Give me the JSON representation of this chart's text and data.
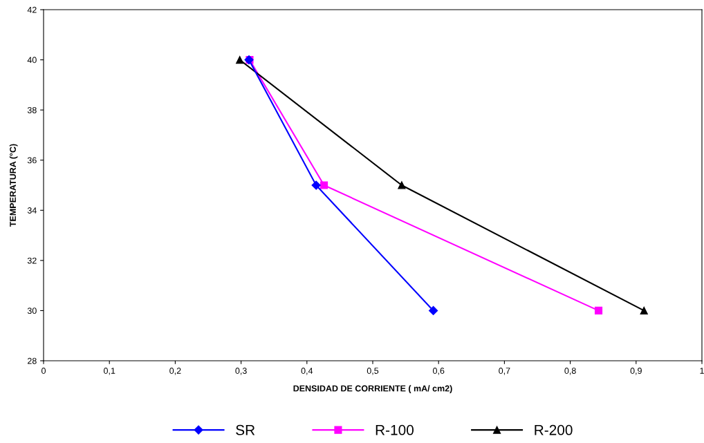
{
  "chart_data": {
    "type": "line",
    "xlabel": "DENSIDAD DE CORRIENTE ( mA/ cm2)",
    "ylabel": "TEMPERATURA (°C)",
    "xlim": [
      0,
      1
    ],
    "xticks": [
      0,
      {
        "value": 0.1,
        "label": "0,1"
      },
      {
        "value": 0.2,
        "label": "0,2"
      },
      {
        "value": 0.3,
        "label": "0,3"
      },
      {
        "value": 0.4,
        "label": "0,4"
      },
      {
        "value": 0.5,
        "label": "0,5"
      },
      {
        "value": 0.6,
        "label": "0,6"
      },
      {
        "value": 0.7,
        "label": "0,7"
      },
      {
        "value": 0.8,
        "label": "0,8"
      },
      {
        "value": 0.9,
        "label": "0,9"
      },
      1
    ],
    "ylim": [
      28,
      42
    ],
    "yticks": [
      28,
      30,
      32,
      34,
      36,
      38,
      40,
      42
    ],
    "grid": false,
    "legend": "bottom",
    "line_style": "solid",
    "series": [
      {
        "name": "SR",
        "color": "#0000ff",
        "marker": "diamond",
        "x": [
          0.312,
          0.414,
          0.592
        ],
        "values": [
          40,
          35,
          30
        ]
      },
      {
        "name": "R-100",
        "color": "#ff00ff",
        "marker": "square",
        "x": [
          0.313,
          0.426,
          0.843
        ],
        "values": [
          40,
          35,
          30
        ]
      },
      {
        "name": "R-200",
        "color": "#000000",
        "marker": "triangle",
        "x": [
          0.298,
          0.544,
          0.912
        ],
        "values": [
          40,
          35,
          30
        ]
      }
    ]
  }
}
